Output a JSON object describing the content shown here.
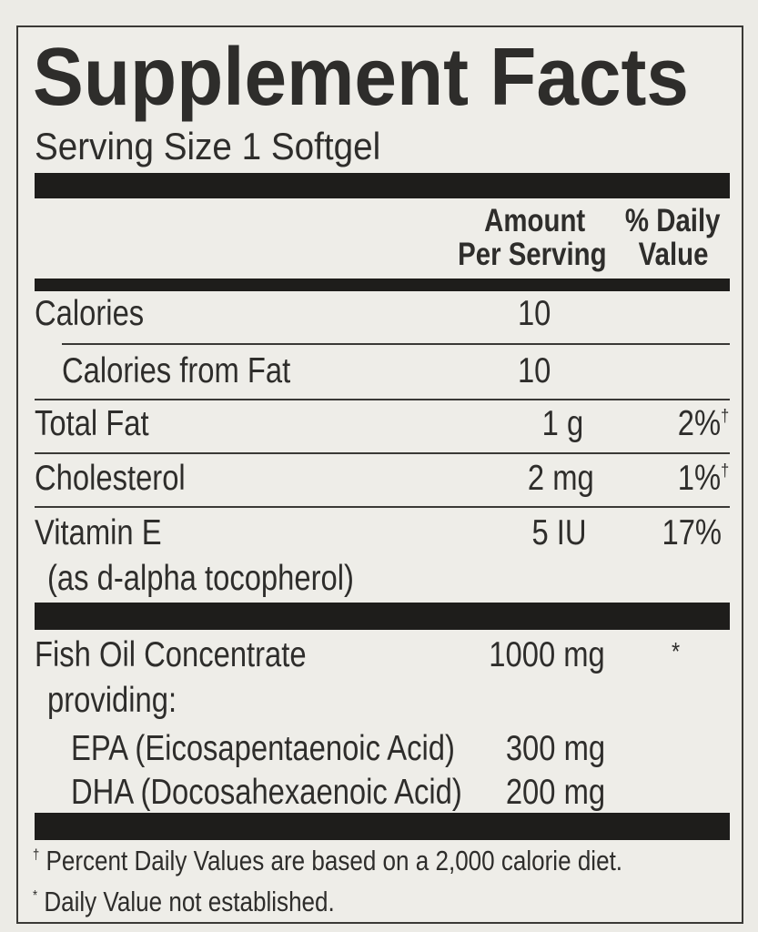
{
  "title": "Supplement Facts",
  "serving_size": "Serving Size 1 Softgel",
  "headers": {
    "amount_line1": "Amount",
    "amount_line2": "Per Serving",
    "dv_line1": "% Daily",
    "dv_line2": "Value"
  },
  "rows": [
    {
      "name": "Calories",
      "amount": "10",
      "dv": ""
    },
    {
      "name": "Calories from Fat",
      "amount": "10",
      "dv": ""
    },
    {
      "name": "Total Fat",
      "amount": "1 g",
      "dv": "2%",
      "dv_mark": "†"
    },
    {
      "name": "Cholesterol",
      "amount": "2 mg",
      "dv": "1%",
      "dv_mark": "†"
    },
    {
      "name": "Vitamin E",
      "sub": "(as d-alpha tocopherol)",
      "amount": "5 IU",
      "dv": "17%"
    }
  ],
  "fish_oil": {
    "name": "Fish Oil Concentrate",
    "amount": "1000 mg",
    "dv": "*",
    "providing": "providing:",
    "components": [
      {
        "name": "EPA (Eicosapentaenoic Acid)",
        "amount": "300 mg"
      },
      {
        "name": "DHA (Docosahexaenoic Acid)",
        "amount": "200 mg"
      }
    ]
  },
  "footnotes": [
    {
      "mark": "†",
      "text": "Percent Daily Values are based on a 2,000 calorie diet."
    },
    {
      "mark": "*",
      "text": "Daily Value not established."
    }
  ]
}
